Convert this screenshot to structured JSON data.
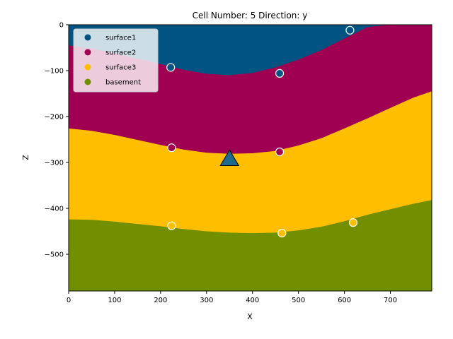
{
  "chart_data": {
    "type": "area",
    "title": "Cell Number: 5 Direction: y",
    "xlabel": "X",
    "ylabel": "Z",
    "xlim": [
      0,
      790
    ],
    "ylim": [
      -580,
      0
    ],
    "xticks": [
      0,
      100,
      200,
      300,
      400,
      500,
      600,
      700
    ],
    "yticks": [
      0,
      -100,
      -200,
      -300,
      -400,
      -500
    ],
    "legend_position": "top-left",
    "colors": {
      "surface1": "#015482",
      "surface2": "#9f0052",
      "surface3": "#ffbe00",
      "basement": "#728f02"
    },
    "boundaries": [
      {
        "name": "surface1 / surface2",
        "x": [
          0,
          50,
          100,
          150,
          200,
          250,
          300,
          350,
          400,
          450,
          500,
          550,
          600,
          650,
          700,
          750,
          790
        ],
        "y": [
          -45,
          -52,
          -62,
          -74,
          -86,
          -98,
          -107,
          -110,
          -105,
          -93,
          -76,
          -55,
          -30,
          -5,
          0,
          0,
          0
        ]
      },
      {
        "name": "surface2 / surface3",
        "x": [
          0,
          50,
          100,
          150,
          200,
          250,
          300,
          350,
          400,
          450,
          500,
          550,
          600,
          650,
          700,
          750,
          790
        ],
        "y": [
          -226,
          -231,
          -240,
          -251,
          -262,
          -272,
          -279,
          -281,
          -280,
          -275,
          -263,
          -247,
          -226,
          -204,
          -181,
          -159,
          -145
        ]
      },
      {
        "name": "surface3 / basement",
        "x": [
          0,
          50,
          100,
          150,
          200,
          250,
          300,
          350,
          400,
          450,
          500,
          550,
          600,
          650,
          700,
          750,
          790
        ],
        "y": [
          -424,
          -425,
          -429,
          -434,
          -439,
          -445,
          -450,
          -453,
          -454,
          -453,
          -448,
          -440,
          -428,
          -414,
          -402,
          -390,
          -382
        ]
      }
    ],
    "series": [
      {
        "name": "surface1",
        "x": [
          222,
          459,
          612
        ],
        "y": [
          -93,
          -106,
          -12
        ]
      },
      {
        "name": "surface2",
        "x": [
          224,
          459
        ],
        "y": [
          -268,
          -277
        ]
      },
      {
        "name": "surface3",
        "x": [
          224,
          464,
          619
        ],
        "y": [
          -438,
          -454,
          -431
        ]
      },
      {
        "name": "basement",
        "x": [],
        "y": []
      }
    ],
    "marker": {
      "shape": "triangle",
      "x": 350,
      "y": -290,
      "color": "#1d6a8c"
    }
  }
}
